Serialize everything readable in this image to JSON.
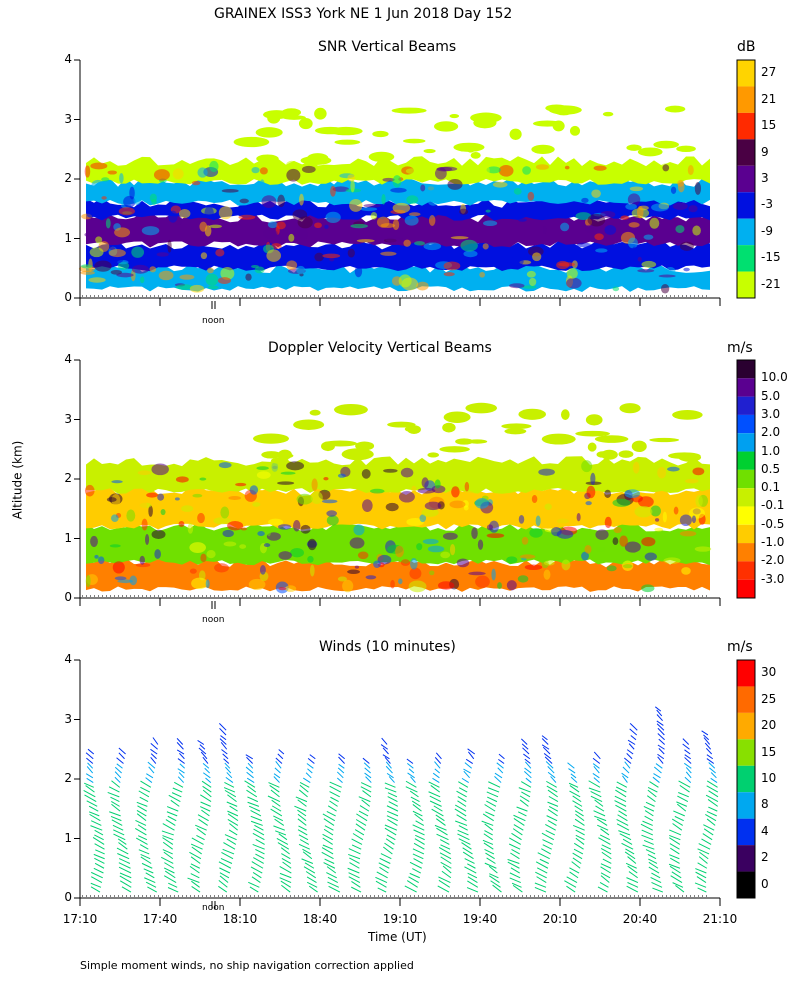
{
  "header": {
    "title": "GRAINEX ISS3 York NE   1 Jun 2018 Day 152"
  },
  "panels": {
    "snr": {
      "title": "SNR Vertical Beams",
      "unit": "dB"
    },
    "doppler": {
      "title": "Doppler Velocity Vertical Beams",
      "unit": "m/s"
    },
    "winds": {
      "title": "Winds (10 minutes)",
      "unit": "m/s"
    }
  },
  "axes": {
    "ylabel": "Altitude (km)",
    "xlabel": "Time (UT)",
    "y_ticks": [
      "0",
      "1",
      "2",
      "3",
      "4"
    ],
    "x_ticks": [
      "17:10",
      "17:40",
      "18:10",
      "18:40",
      "19:10",
      "19:40",
      "20:10",
      "20:40",
      "21:10"
    ],
    "noon_label": "noon"
  },
  "footer": {
    "note": "Simple moment winds, no ship navigation correction applied"
  },
  "chart_data": [
    {
      "type": "heatmap",
      "title": "SNR Vertical Beams",
      "ylabel": "Altitude (km)",
      "ylim": [
        0,
        4
      ],
      "x_range": [
        "17:10",
        "21:10"
      ],
      "colorbar": {
        "unit": "dB",
        "labels": [
          "27",
          "21",
          "15",
          "9",
          "3",
          "-3",
          "-9",
          "-15",
          "-21"
        ],
        "colors": [
          "#ffd400",
          "#ff9900",
          "#ff2a00",
          "#4a0044",
          "#5a0090",
          "#0010e0",
          "#00b0f0",
          "#00e070",
          "#c8ff00"
        ]
      },
      "layers": [
        {
          "range_km": [
            0.15,
            0.5
          ],
          "class": "-9 to -3 dB",
          "color": "#00b0f0"
        },
        {
          "range_km": [
            0.5,
            0.9
          ],
          "class": "-3 to 3 dB",
          "color": "#0010e0"
        },
        {
          "range_km": [
            0.9,
            1.35
          ],
          "class": "3 to 9 dB",
          "color": "#5a0090"
        },
        {
          "range_km": [
            1.35,
            1.6
          ],
          "class": "-3 to 3 dB",
          "color": "#0010e0"
        },
        {
          "range_km": [
            1.6,
            1.95
          ],
          "class": "-9 to -3 dB",
          "color": "#00b0f0"
        },
        {
          "range_km": [
            1.95,
            2.3
          ],
          "class": "-21 to -15 dB",
          "color": "#c8ff00"
        }
      ]
    },
    {
      "type": "heatmap",
      "title": "Doppler Velocity Vertical Beams",
      "ylabel": "Altitude (km)",
      "ylim": [
        0,
        4
      ],
      "x_range": [
        "17:10",
        "21:10"
      ],
      "colorbar": {
        "unit": "m/s",
        "labels": [
          "10.0",
          "5.0",
          "3.0",
          "2.0",
          "1.0",
          "0.5",
          "0.1",
          "-0.1",
          "-0.5",
          "-1.0",
          "-2.0",
          "-3.0"
        ],
        "colors": [
          "#2a0030",
          "#5a0090",
          "#2020d0",
          "#0050ff",
          "#00a0f0",
          "#00d030",
          "#70e000",
          "#c8f000",
          "#ffff00",
          "#ffcc00",
          "#ff8000",
          "#ff3000",
          "#ff0000"
        ]
      },
      "layers": [
        {
          "range_km": [
            0.15,
            0.6
          ],
          "class": "-1.0 to -0.5 m/s",
          "color": "#ff8000"
        },
        {
          "range_km": [
            0.6,
            1.2
          ],
          "class": "0.1 to 0.5 m/s",
          "color": "#70e000"
        },
        {
          "range_km": [
            1.2,
            1.8
          ],
          "class": "-0.5 to -0.1 m/s",
          "color": "#ffcc00"
        },
        {
          "range_km": [
            1.8,
            2.3
          ],
          "class": "-0.1 to 0.1 m/s",
          "color": "#c8f000"
        }
      ]
    },
    {
      "type": "scatter",
      "title": "Winds (10 minutes)",
      "ylabel": "Altitude (km)",
      "xlabel": "Time (UT)",
      "ylim": [
        0,
        4
      ],
      "x_range": [
        "17:10",
        "21:10"
      ],
      "colorbar": {
        "unit": "m/s",
        "labels": [
          "30",
          "25",
          "20",
          "15",
          "10",
          "8",
          "4",
          "2",
          "0"
        ],
        "colors": [
          "#ff0000",
          "#ff6a00",
          "#ffaa00",
          "#88e000",
          "#00d070",
          "#00a8f0",
          "#0030f0",
          "#3a0060",
          "#000000"
        ]
      },
      "profile_times": [
        "17:17",
        "17:27",
        "17:37",
        "17:47",
        "17:57",
        "18:07",
        "18:17",
        "18:27",
        "18:37",
        "18:47",
        "18:57",
        "19:07",
        "19:17",
        "19:27",
        "19:37",
        "19:47",
        "19:57",
        "20:07",
        "20:17",
        "20:27",
        "20:37",
        "20:47",
        "20:57",
        "21:07"
      ],
      "profile_top_km": [
        2.5,
        2.5,
        2.6,
        2.6,
        2.6,
        2.9,
        2.4,
        2.5,
        2.4,
        2.4,
        2.3,
        2.6,
        2.3,
        2.4,
        2.5,
        2.4,
        2.6,
        2.7,
        2.2,
        2.4,
        2.9,
        3.2,
        2.6,
        2.8
      ],
      "low_level_speed_class": "10 to 15 m/s",
      "upper_level_speed_class": "4 to 8 m/s"
    }
  ]
}
